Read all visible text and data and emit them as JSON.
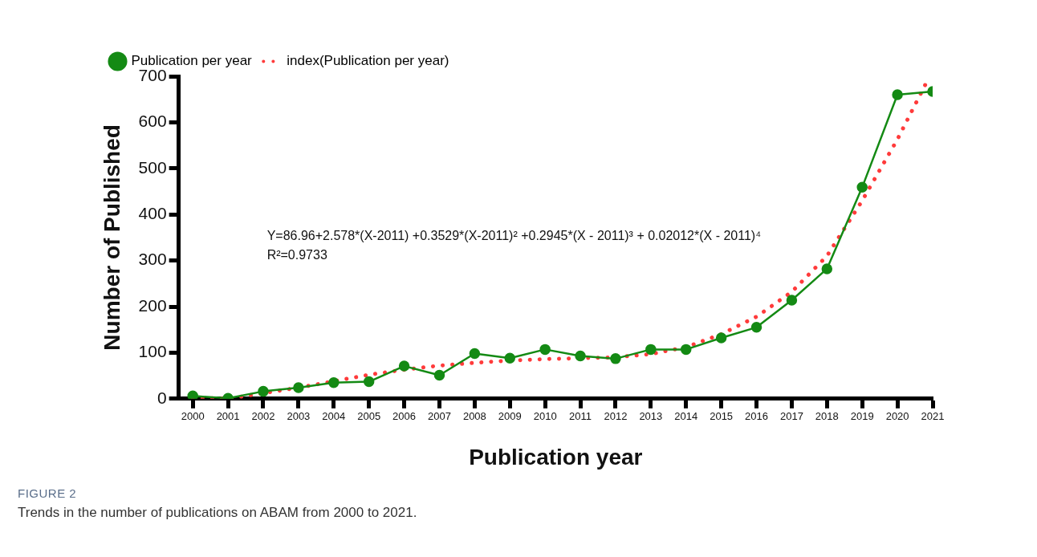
{
  "chart_data": {
    "type": "line",
    "xlabel": "Publication year",
    "ylabel": "Number of Published",
    "x": [
      2000,
      2001,
      2002,
      2003,
      2004,
      2005,
      2006,
      2007,
      2008,
      2009,
      2010,
      2011,
      2012,
      2013,
      2014,
      2015,
      2016,
      2017,
      2018,
      2019,
      2020,
      2021
    ],
    "series": [
      {
        "name": "Publication per year",
        "color": "#148a14",
        "marker": "circle",
        "line_style": "solid",
        "values": [
          6,
          1,
          16,
          24,
          35,
          37,
          71,
          51,
          98,
          88,
          107,
          93,
          87,
          107,
          107,
          132,
          155,
          214,
          282,
          459,
          660,
          667
        ]
      },
      {
        "name": "index(Publication per year)",
        "color": "#ff3b3b",
        "marker": "none",
        "line_style": "dotted",
        "x": [
          2000,
          2001,
          2002,
          2003,
          2004,
          2005,
          2006,
          2007,
          2008,
          2009,
          2010,
          2011,
          2012,
          2013,
          2014,
          2015,
          2016,
          2017,
          2018,
          2019,
          2020,
          2020.8
        ],
        "values": [
          2,
          0,
          12,
          24,
          38,
          52,
          63,
          72,
          78,
          83,
          86,
          88,
          90,
          97,
          112,
          140,
          178,
          232,
          310,
          430,
          563,
          683
        ]
      }
    ],
    "xlim": [
      1999.6,
      2021
    ],
    "xticks": [
      2000,
      2001,
      2002,
      2003,
      2004,
      2005,
      2006,
      2007,
      2008,
      2009,
      2010,
      2011,
      2012,
      2013,
      2014,
      2015,
      2016,
      2017,
      2018,
      2019,
      2020,
      2021
    ],
    "ylim": [
      0,
      700
    ],
    "yticks": [
      0,
      100,
      200,
      300,
      400,
      500,
      600,
      700
    ],
    "grid": false,
    "legend": "top left",
    "annotations": [
      "Y=86.96+2.578*(X-2011) +0.3529*(X-2011)² +0.2945*(X - 2011)³ + 0.02012*(X - 2011)⁴",
      "R²=0.9733",
      "FIGURE 2",
      "Trends in the number of publications on ABAM from 2000 to 2021."
    ]
  }
}
